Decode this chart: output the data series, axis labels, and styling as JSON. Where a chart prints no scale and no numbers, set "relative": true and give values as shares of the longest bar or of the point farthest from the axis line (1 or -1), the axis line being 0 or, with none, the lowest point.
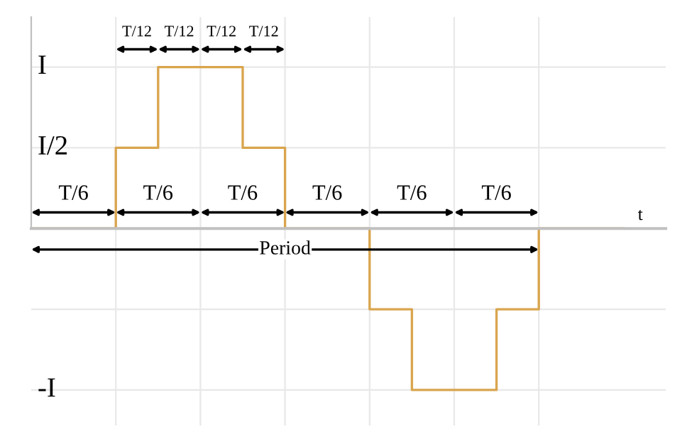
{
  "chart_data": {
    "type": "step",
    "relative": true,
    "xlabel": "t",
    "categories": [
      null,
      null,
      null,
      null,
      null,
      null,
      null,
      null,
      null,
      null,
      null,
      null,
      null,
      null,
      null
    ],
    "series": [
      {
        "color": "#d9a54e",
        "values": [
          0,
          0,
          0.5,
          1,
          1,
          0.5,
          0,
          0,
          -0.5,
          -1,
          -1,
          -0.5,
          0,
          0,
          0
        ]
      }
    ],
    "grid": true,
    "annotations": [
      "I",
      "I/2",
      "-I",
      "T/6",
      "T/6",
      "T/6",
      "T/6",
      "T/6",
      "T/6",
      "T/12",
      "T/12",
      "T/12",
      "T/12",
      "Period"
    ]
  }
}
